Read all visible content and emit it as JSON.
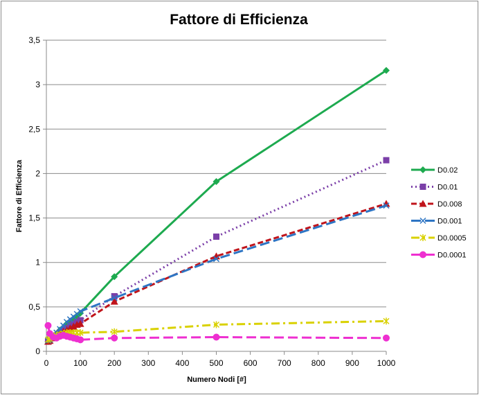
{
  "chart_data": {
    "type": "line",
    "title": "Fattore di Efficienza",
    "xlabel": "Numero Nodi  [#]",
    "ylabel": "Fattore di Efficienza",
    "xlim": [
      0,
      1000
    ],
    "ylim": [
      0,
      3.5
    ],
    "xticks": [
      "0",
      "100",
      "200",
      "300",
      "400",
      "500",
      "600",
      "700",
      "800",
      "900",
      "1000"
    ],
    "yticks": [
      "0",
      "0,5",
      "1",
      "1,5",
      "2",
      "2,5",
      "3",
      "3,5"
    ],
    "grid": "horizontal",
    "legend_position": "right",
    "series": [
      {
        "name": "D0.02",
        "color": "#1daa4f",
        "dash": "solid",
        "marker": "diamond",
        "x": [
          5,
          10,
          20,
          30,
          40,
          50,
          60,
          70,
          80,
          90,
          100,
          200,
          500,
          1000
        ],
        "y": [
          0.11,
          0.12,
          0.16,
          0.2,
          0.24,
          0.27,
          0.31,
          0.34,
          0.37,
          0.4,
          0.43,
          0.84,
          1.91,
          3.16
        ]
      },
      {
        "name": "D0.01",
        "color": "#7b3fa8",
        "dash": "dot",
        "marker": "square",
        "x": [
          5,
          10,
          20,
          30,
          40,
          50,
          60,
          70,
          80,
          90,
          100,
          200,
          500,
          1000
        ],
        "y": [
          0.11,
          0.12,
          0.15,
          0.18,
          0.21,
          0.24,
          0.26,
          0.29,
          0.31,
          0.33,
          0.35,
          0.62,
          1.29,
          2.15
        ]
      },
      {
        "name": "D0.008",
        "color": "#c0141b",
        "dash": "dash",
        "marker": "triangle",
        "x": [
          5,
          10,
          20,
          30,
          40,
          50,
          60,
          70,
          80,
          90,
          100,
          200,
          500,
          1000
        ],
        "y": [
          0.11,
          0.12,
          0.15,
          0.18,
          0.2,
          0.22,
          0.24,
          0.26,
          0.28,
          0.3,
          0.31,
          0.56,
          1.07,
          1.66
        ]
      },
      {
        "name": "D0.001",
        "color": "#2e75c4",
        "dash": "longdash",
        "marker": "x",
        "x": [
          5,
          10,
          20,
          30,
          40,
          50,
          60,
          70,
          80,
          90,
          100,
          200,
          500,
          1000
        ],
        "y": [
          0.12,
          0.13,
          0.17,
          0.21,
          0.25,
          0.29,
          0.33,
          0.36,
          0.39,
          0.42,
          0.45,
          0.6,
          1.04,
          1.64
        ]
      },
      {
        "name": "D0.0005",
        "color": "#d9d100",
        "dash": "dashdot",
        "marker": "star",
        "x": [
          5,
          10,
          20,
          30,
          40,
          50,
          60,
          70,
          80,
          90,
          100,
          200,
          500,
          1000
        ],
        "y": [
          0.13,
          0.14,
          0.16,
          0.18,
          0.19,
          0.2,
          0.21,
          0.21,
          0.21,
          0.21,
          0.21,
          0.22,
          0.3,
          0.34
        ]
      },
      {
        "name": "D0.0001",
        "color": "#ee2fd0",
        "dash": "longdash",
        "marker": "circle",
        "x": [
          5,
          10,
          20,
          30,
          40,
          50,
          60,
          70,
          80,
          90,
          100,
          200,
          500,
          1000
        ],
        "y": [
          0.29,
          0.2,
          0.16,
          0.15,
          0.17,
          0.18,
          0.17,
          0.16,
          0.15,
          0.14,
          0.13,
          0.15,
          0.16,
          0.15
        ]
      }
    ]
  }
}
